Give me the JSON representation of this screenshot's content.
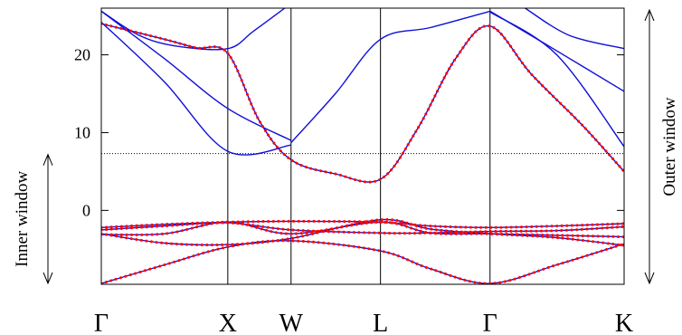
{
  "chart_data": {
    "type": "line",
    "title": "",
    "xlabel": "",
    "ylabel": "",
    "ylim": [
      -9.5,
      26
    ],
    "yticks": [
      0,
      10,
      20
    ],
    "kpoints": [
      {
        "label": "Γ",
        "x": 0.0
      },
      {
        "label": "X",
        "x": 1.0
      },
      {
        "label": "W",
        "x": 1.5
      },
      {
        "label": "L",
        "x": 2.207
      },
      {
        "label": "Γ",
        "x": 3.073
      },
      {
        "label": "K",
        "x": 4.133
      }
    ],
    "horizontal_line": {
      "y": 7.3,
      "style": "dotted"
    },
    "windows": [
      {
        "label": "Inner window",
        "range": [
          -9.5,
          7.3
        ]
      },
      {
        "label": "Outer window",
        "range": [
          -9.5,
          26
        ]
      }
    ],
    "series": [
      {
        "name": "",
        "style": "solid",
        "color": "#1010d8",
        "lines": [
          {
            "x": [
              0,
              0.5,
              1.0,
              1.5,
              2.207,
              2.6,
              3.073,
              3.6,
              4.133
            ],
            "y": [
              -9.4,
              -7.0,
              -4.7,
              -3.9,
              -5.2,
              -7.5,
              -9.4,
              -7.0,
              -4.3
            ]
          },
          {
            "x": [
              0,
              0.5,
              1.0,
              1.5,
              2.207,
              2.6,
              3.073,
              3.6,
              4.133
            ],
            "y": [
              -3.0,
              -4.2,
              -4.4,
              -3.6,
              -1.2,
              -2.4,
              -3.0,
              -3.5,
              -4.5
            ]
          },
          {
            "x": [
              0,
              0.5,
              1.0,
              1.5,
              2.207,
              2.6,
              3.073,
              3.6,
              4.133
            ],
            "y": [
              -2.5,
              -2.0,
              -1.6,
              -2.5,
              -2.9,
              -2.9,
              -2.7,
              -2.6,
              -2.1
            ]
          },
          {
            "x": [
              0,
              0.5,
              1.0,
              1.5,
              2.207,
              2.6,
              3.073,
              3.6,
              4.133
            ],
            "y": [
              -2.2,
              -1.8,
              -1.5,
              -1.4,
              -1.5,
              -2.0,
              -2.2,
              -2.0,
              -1.7
            ]
          },
          {
            "x": [
              0,
              0.5,
              1.0,
              1.5,
              2.207,
              2.6,
              3.073,
              3.6,
              4.133
            ],
            "y": [
              -3.1,
              -3.0,
              -1.5,
              -3.0,
              -1.5,
              -2.9,
              -3.0,
              -3.2,
              -3.4
            ]
          },
          {
            "x": [
              0,
              0.5,
              0.75,
              1.0,
              1.25,
              1.5,
              1.85,
              2.207,
              2.5,
              2.8,
              3.073,
              3.4,
              3.8,
              4.133
            ],
            "y": [
              24.0,
              22.0,
              20.9,
              20.2,
              11.5,
              6.5,
              4.7,
              4.0,
              10.5,
              19.5,
              23.7,
              17.5,
              11.0,
              5.0
            ]
          },
          {
            "x": [
              0,
              0.5,
              1.0,
              1.5
            ],
            "y": [
              24.2,
              16.5,
              7.6,
              8.4
            ]
          },
          {
            "x": [
              0,
              0.5,
              1.0,
              1.5
            ],
            "y": [
              25.6,
              19.5,
              13.1,
              9.0
            ]
          },
          {
            "x": [
              0,
              0.3,
              0.6,
              1.0,
              1.2,
              1.45
            ],
            "y": [
              25.6,
              22.5,
              21.1,
              20.8,
              23.0,
              26.0
            ]
          },
          {
            "x": [
              1.5,
              1.85,
              2.207,
              2.6,
              3.073
            ],
            "y": [
              8.7,
              15.0,
              22.0,
              23.5,
              25.6
            ]
          },
          {
            "x": [
              3.073,
              3.6,
              4.133
            ],
            "y": [
              25.5,
              20.0,
              8.2
            ]
          },
          {
            "x": [
              3.073,
              3.5,
              4.133
            ],
            "y": [
              25.6,
              21.5,
              15.3
            ]
          },
          {
            "x": [
              3.35,
              3.7,
              4.133
            ],
            "y": [
              26.0,
              22.5,
              20.8
            ]
          }
        ]
      },
      {
        "name": "",
        "style": "dotted",
        "color": "#ff0000",
        "lines": [
          {
            "x": [
              0,
              0.5,
              1.0,
              1.5,
              2.207,
              2.6,
              3.073,
              3.6,
              4.133
            ],
            "y": [
              -9.4,
              -7.0,
              -4.7,
              -3.9,
              -5.2,
              -7.5,
              -9.4,
              -7.0,
              -4.3
            ]
          },
          {
            "x": [
              0,
              0.5,
              1.0,
              1.5,
              2.207,
              2.6,
              3.073,
              3.6,
              4.133
            ],
            "y": [
              -3.0,
              -4.2,
              -4.4,
              -3.6,
              -1.2,
              -2.4,
              -3.0,
              -3.5,
              -4.5
            ]
          },
          {
            "x": [
              0,
              0.5,
              1.0,
              1.5,
              2.207,
              2.6,
              3.073,
              3.6,
              4.133
            ],
            "y": [
              -2.5,
              -2.0,
              -1.6,
              -2.5,
              -2.9,
              -2.9,
              -2.7,
              -2.6,
              -2.1
            ]
          },
          {
            "x": [
              0,
              0.5,
              1.0,
              1.5,
              2.207,
              2.6,
              3.073,
              3.6,
              4.133
            ],
            "y": [
              -2.2,
              -1.8,
              -1.5,
              -1.4,
              -1.5,
              -2.0,
              -2.2,
              -2.0,
              -1.7
            ]
          },
          {
            "x": [
              0,
              0.5,
              1.0,
              1.5,
              2.207,
              2.6,
              3.073,
              3.6,
              4.133
            ],
            "y": [
              -3.1,
              -3.0,
              -1.5,
              -3.0,
              -1.5,
              -2.9,
              -3.0,
              -3.2,
              -3.4
            ]
          },
          {
            "x": [
              0,
              0.5,
              0.75,
              1.0,
              1.25,
              1.5,
              1.85,
              2.207,
              2.5,
              2.8,
              3.073,
              3.4,
              3.8,
              4.133
            ],
            "y": [
              24.0,
              22.0,
              20.9,
              20.2,
              11.5,
              6.5,
              4.7,
              4.0,
              10.5,
              19.5,
              23.7,
              17.5,
              11.0,
              5.0
            ]
          }
        ]
      }
    ]
  }
}
